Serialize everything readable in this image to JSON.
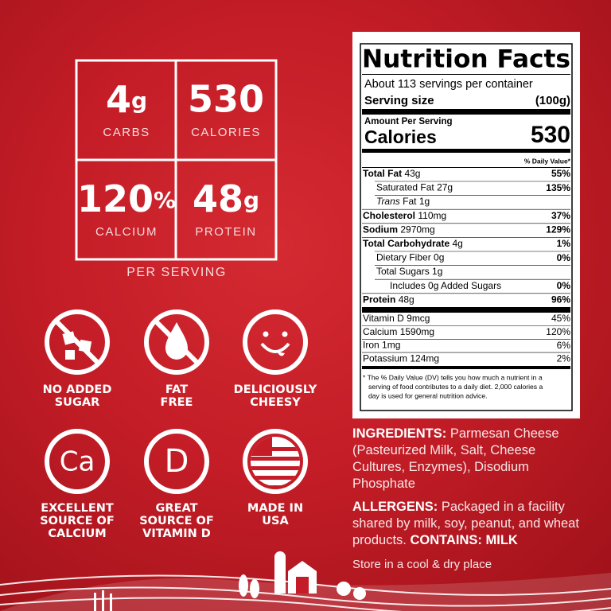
{
  "stats": [
    {
      "value": "4",
      "unit": "g",
      "label": "CARBS"
    },
    {
      "value": "530",
      "label": "CALORIES"
    },
    {
      "value": "120",
      "unit": "%",
      "label": "CALCIUM"
    },
    {
      "value": "48",
      "unit": "g",
      "label": "PROTEIN"
    }
  ],
  "per_serving": "PER SERVING",
  "badges": [
    {
      "lines": [
        "NO ADDED",
        "SUGAR"
      ]
    },
    {
      "lines": [
        "FAT",
        "FREE"
      ]
    },
    {
      "lines": [
        "DELICIOUSLY",
        "CHEESY"
      ]
    },
    {
      "icon_text": "Ca",
      "lines": [
        "EXCELLENT",
        "SOURCE OF",
        "CALCIUM"
      ]
    },
    {
      "icon_text": "D",
      "lines": [
        "GREAT",
        "SOURCE OF",
        "VITAMIN D"
      ]
    },
    {
      "lines": [
        "MADE IN",
        "USA"
      ]
    }
  ],
  "nutrition": {
    "title": "Nutrition Facts",
    "servings": "About 113 servings per container",
    "serving_size_label": "Serving size",
    "serving_size": "(100g)",
    "amount_per_serving": "Amount Per Serving",
    "calories_label": "Calories",
    "calories": "530",
    "dv_header": "% Daily Value*",
    "rows": [
      {
        "name": "Total Fat",
        "amount": "43g",
        "dv": "55%",
        "bold": true
      },
      {
        "name": "Saturated Fat",
        "amount": "27g",
        "dv": "135%",
        "indent": 1
      },
      {
        "italic": "Trans",
        "name": "Fat",
        "amount": "1g",
        "indent": 1
      },
      {
        "name": "Cholesterol",
        "amount": "110mg",
        "dv": "37%",
        "bold": true
      },
      {
        "name": "Sodium",
        "amount": "2970mg",
        "dv": "129%",
        "bold": true
      },
      {
        "name": "Total Carbohydrate",
        "amount": "4g",
        "dv": "1%",
        "bold": true
      },
      {
        "name": "Dietary Fiber",
        "amount": "0g",
        "dv": "0%",
        "indent": 1
      },
      {
        "name": "Total Sugars",
        "amount": "1g",
        "indent": 1
      },
      {
        "name": "Includes 0g Added Sugars",
        "dv": "0%",
        "indent": 2
      },
      {
        "name": "Protein",
        "amount": "48g",
        "dv": "96%",
        "bold": true
      }
    ],
    "vitamins": [
      {
        "name": "Vitamin D",
        "amount": "9mcg",
        "dv": "45%"
      },
      {
        "name": "Calcium",
        "amount": "1590mg",
        "dv": "120%"
      },
      {
        "name": "Iron",
        "amount": "1mg",
        "dv": "6%"
      },
      {
        "name": "Potassium",
        "amount": "124mg",
        "dv": "2%"
      }
    ],
    "footnote": [
      "* The % Daily Value (DV) tells you how much a nutrient in a",
      "serving of food contributes to a daily diet. 2,000 calories a",
      "day is used for general nutrition advice."
    ]
  },
  "ingredients": {
    "label": "INGREDIENTS:",
    "text": "Parmesan Cheese (Pasteurized Milk, Salt, Cheese Cultures, Enzymes), Disodium Phosphate"
  },
  "allergens": {
    "label": "ALLERGENS:",
    "text": "Packaged in a facility shared by milk, soy, peanut, and wheat products.",
    "contains_label": "CONTAINS:",
    "contains": "MILK"
  },
  "storage": "Store in a cool & dry place"
}
